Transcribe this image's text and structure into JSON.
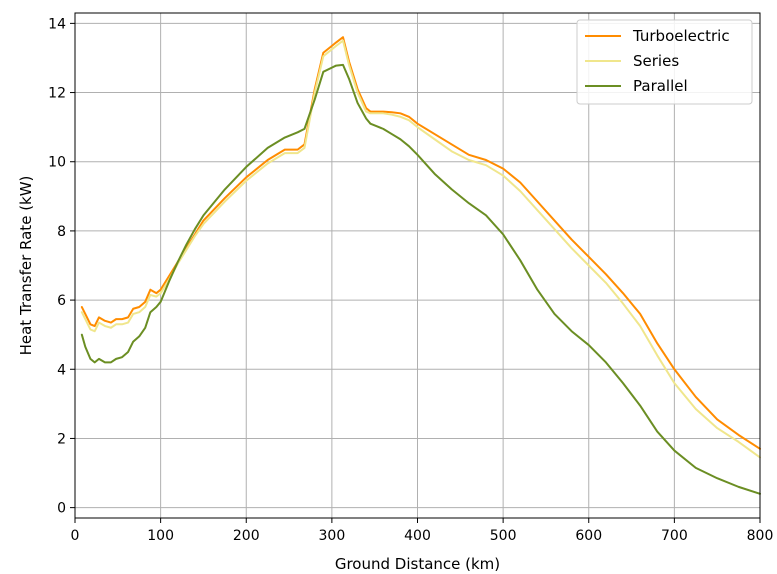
{
  "chart_data": {
    "type": "line",
    "title": "",
    "xlabel": "Ground Distance (km)",
    "ylabel": "Heat Transfer Rate (kW)",
    "xlim": [
      0,
      800
    ],
    "ylim": [
      -0.3,
      14.3
    ],
    "xticks": [
      0,
      100,
      200,
      300,
      400,
      500,
      600,
      700,
      800
    ],
    "yticks": [
      0,
      2,
      4,
      6,
      8,
      10,
      12,
      14
    ],
    "grid": true,
    "legend_position": "top-right",
    "series": [
      {
        "name": "Turboelectric",
        "color": "#ff8c00",
        "x": [
          8,
          12,
          18,
          23,
          28,
          35,
          42,
          48,
          55,
          62,
          68,
          75,
          82,
          88,
          95,
          100,
          110,
          120,
          130,
          140,
          150,
          175,
          200,
          225,
          245,
          260,
          268,
          280,
          290,
          300,
          305,
          313,
          320,
          330,
          340,
          345,
          360,
          370,
          380,
          390,
          400,
          420,
          440,
          460,
          480,
          500,
          520,
          540,
          560,
          580,
          600,
          620,
          640,
          660,
          680,
          700,
          725,
          750,
          775,
          800
        ],
        "y": [
          5.8,
          5.6,
          5.3,
          5.25,
          5.5,
          5.4,
          5.35,
          5.45,
          5.45,
          5.5,
          5.75,
          5.8,
          5.95,
          6.3,
          6.2,
          6.3,
          6.7,
          7.1,
          7.5,
          7.9,
          8.3,
          8.95,
          9.55,
          10.05,
          10.35,
          10.35,
          10.5,
          12.1,
          13.15,
          13.35,
          13.45,
          13.6,
          12.9,
          12.1,
          11.55,
          11.45,
          11.45,
          11.43,
          11.4,
          11.3,
          11.1,
          10.8,
          10.5,
          10.2,
          10.05,
          9.8,
          9.4,
          8.85,
          8.3,
          7.75,
          7.25,
          6.75,
          6.2,
          5.6,
          4.75,
          4.0,
          3.2,
          2.55,
          2.1,
          1.7
        ]
      },
      {
        "name": "Series",
        "color": "#f0e68c",
        "x": [
          8,
          12,
          18,
          23,
          28,
          35,
          42,
          48,
          55,
          62,
          68,
          75,
          82,
          88,
          95,
          100,
          110,
          120,
          130,
          140,
          150,
          175,
          200,
          225,
          245,
          260,
          268,
          280,
          290,
          300,
          305,
          313,
          320,
          330,
          340,
          345,
          360,
          370,
          380,
          390,
          400,
          420,
          440,
          460,
          480,
          500,
          520,
          540,
          560,
          580,
          600,
          620,
          640,
          660,
          680,
          700,
          725,
          750,
          775,
          800
        ],
        "y": [
          5.65,
          5.45,
          5.15,
          5.1,
          5.35,
          5.25,
          5.2,
          5.3,
          5.3,
          5.35,
          5.6,
          5.65,
          5.8,
          6.15,
          6.1,
          6.2,
          6.6,
          7.05,
          7.45,
          7.85,
          8.2,
          8.85,
          9.45,
          9.95,
          10.25,
          10.25,
          10.4,
          12.0,
          13.05,
          13.25,
          13.35,
          13.5,
          12.8,
          12.0,
          11.45,
          11.4,
          11.4,
          11.36,
          11.3,
          11.2,
          11.0,
          10.65,
          10.3,
          10.05,
          9.9,
          9.6,
          9.15,
          8.6,
          8.05,
          7.5,
          7.0,
          6.5,
          5.9,
          5.25,
          4.4,
          3.6,
          2.85,
          2.3,
          1.9,
          1.45
        ]
      },
      {
        "name": "Parallel",
        "color": "#6b8e23",
        "x": [
          8,
          12,
          18,
          23,
          28,
          35,
          42,
          48,
          55,
          62,
          68,
          75,
          82,
          88,
          95,
          100,
          110,
          120,
          130,
          140,
          150,
          175,
          200,
          225,
          245,
          260,
          268,
          280,
          290,
          300,
          305,
          313,
          320,
          330,
          340,
          345,
          360,
          370,
          380,
          390,
          400,
          420,
          440,
          460,
          480,
          500,
          520,
          540,
          560,
          580,
          600,
          620,
          640,
          660,
          680,
          700,
          725,
          750,
          775,
          800
        ],
        "y": [
          5.0,
          4.65,
          4.3,
          4.2,
          4.3,
          4.2,
          4.2,
          4.3,
          4.35,
          4.5,
          4.8,
          4.95,
          5.2,
          5.65,
          5.8,
          5.95,
          6.55,
          7.1,
          7.6,
          8.05,
          8.45,
          9.2,
          9.85,
          10.4,
          10.7,
          10.85,
          10.95,
          11.8,
          12.6,
          12.72,
          12.78,
          12.8,
          12.4,
          11.7,
          11.25,
          11.1,
          10.95,
          10.8,
          10.65,
          10.45,
          10.2,
          9.65,
          9.2,
          8.8,
          8.45,
          7.9,
          7.15,
          6.3,
          5.6,
          5.1,
          4.7,
          4.2,
          3.6,
          2.95,
          2.2,
          1.65,
          1.15,
          0.85,
          0.6,
          0.4
        ]
      }
    ]
  }
}
